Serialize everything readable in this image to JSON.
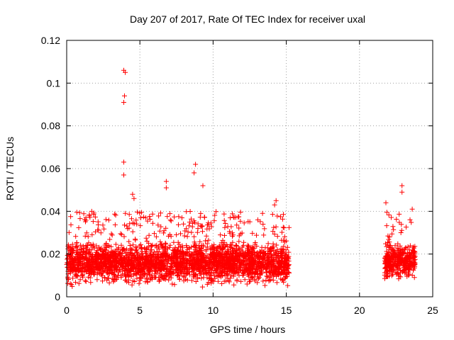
{
  "chart_data": {
    "type": "scatter",
    "title": "Day 207 of 2017, Rate Of TEC Index for receiver uxal",
    "xlabel": "GPS time / hours",
    "ylabel": "ROTI / TECUs",
    "xlim": [
      0,
      25
    ],
    "ylim": [
      0,
      0.12
    ],
    "xticks": [
      0,
      5,
      10,
      15,
      20,
      25
    ],
    "yticks": [
      0,
      0.02,
      0.04,
      0.06,
      0.08,
      0.1,
      0.12
    ],
    "xtick_labels": [
      "0",
      "5",
      "10",
      "15",
      "20",
      "25"
    ],
    "ytick_labels": [
      "0",
      "0.02",
      "0.04",
      "0.06",
      "0.08",
      "0.1",
      "0.12"
    ],
    "grid": true,
    "marker": "+",
    "color": "#ff0000",
    "series": [
      {
        "segments": [
          {
            "x_range": [
              0.0,
              15.2
            ],
            "y_range": [
              0.004,
              0.028
            ]
          },
          {
            "x_range": [
              21.7,
              23.8
            ],
            "y_range": [
              0.006,
              0.028
            ]
          }
        ],
        "notable_points": [
          {
            "x": 3.9,
            "y": 0.106
          },
          {
            "x": 4.0,
            "y": 0.105
          },
          {
            "x": 3.95,
            "y": 0.094
          },
          {
            "x": 3.9,
            "y": 0.091
          },
          {
            "x": 3.9,
            "y": 0.063
          },
          {
            "x": 3.9,
            "y": 0.057
          },
          {
            "x": 8.8,
            "y": 0.062
          },
          {
            "x": 8.7,
            "y": 0.058
          },
          {
            "x": 6.8,
            "y": 0.054
          },
          {
            "x": 6.8,
            "y": 0.051
          },
          {
            "x": 4.5,
            "y": 0.048
          },
          {
            "x": 4.6,
            "y": 0.046
          },
          {
            "x": 9.3,
            "y": 0.052
          },
          {
            "x": 14.3,
            "y": 0.045
          },
          {
            "x": 14.2,
            "y": 0.043
          },
          {
            "x": 22.9,
            "y": 0.052
          },
          {
            "x": 22.9,
            "y": 0.049
          },
          {
            "x": 21.8,
            "y": 0.044
          },
          {
            "x": 23.6,
            "y": 0.041
          }
        ]
      }
    ]
  }
}
